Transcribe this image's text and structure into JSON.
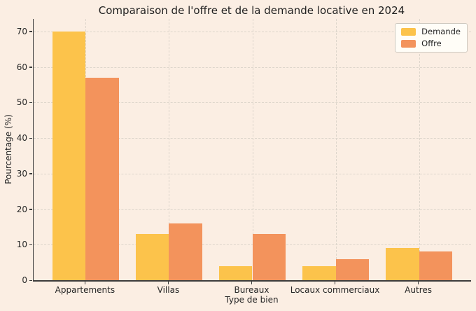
{
  "chart_data": {
    "type": "bar",
    "title": "Comparaison de l'offre et de la demande locative en 2024",
    "xlabel": "Type de bien",
    "ylabel": "Pourcentage (%)",
    "categories": [
      "Appartements",
      "Villas",
      "Bureaux",
      "Locaux commerciaux",
      "Autres"
    ],
    "series": [
      {
        "name": "Demande",
        "color": "#FCC34B",
        "values": [
          70,
          13,
          4,
          4,
          9
        ]
      },
      {
        "name": "Offre",
        "color": "#F3935C",
        "values": [
          57,
          16,
          13,
          6,
          8
        ]
      }
    ],
    "yticks": [
      0,
      10,
      20,
      30,
      40,
      50,
      60,
      70
    ],
    "ylim": [
      0,
      73.5
    ],
    "grid": true,
    "legend_position": "upper right"
  },
  "colors": {
    "figure_background": "#FBEEE3",
    "grid": "#DDD5CB",
    "spine": "#3C3C3C",
    "text": "#262626",
    "legend_background": "#FFFDF7",
    "legend_border": "#CFC9C0"
  }
}
